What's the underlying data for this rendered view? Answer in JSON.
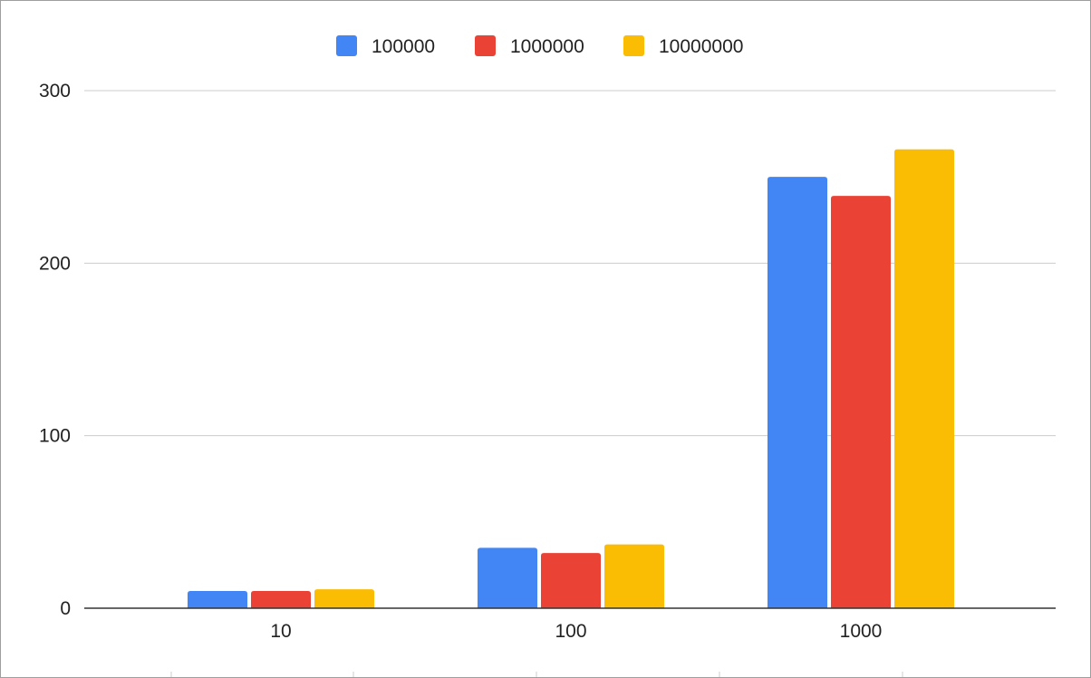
{
  "chart_data": {
    "type": "bar",
    "title": "",
    "xlabel": "",
    "ylabel": "",
    "categories": [
      "10",
      "100",
      "1000"
    ],
    "series": [
      {
        "name": "100000",
        "color": "#4285F4",
        "values": [
          10,
          35,
          250
        ]
      },
      {
        "name": "1000000",
        "color": "#EA4335",
        "values": [
          10,
          32,
          239
        ]
      },
      {
        "name": "10000000",
        "color": "#FBBC04",
        "values": [
          11,
          37,
          266
        ]
      }
    ],
    "ylim": [
      0,
      300
    ],
    "yticks": [
      "0",
      "100",
      "200",
      "300"
    ],
    "grid": true,
    "legend": "top-center"
  }
}
